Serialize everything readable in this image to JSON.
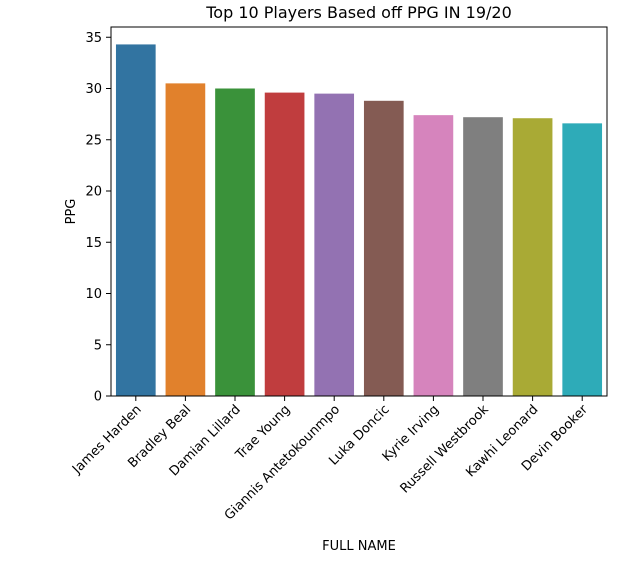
{
  "chart_data": {
    "type": "bar",
    "title": "Top 10 Players Based off PPG IN 19/20",
    "xlabel": "FULL NAME",
    "ylabel": "PPG",
    "categories": [
      "James Harden",
      "Bradley Beal",
      "Damian Lillard",
      "Trae Young",
      "Giannis Antetokounmpo",
      "Luka Doncic",
      "Kyrie Irving",
      "Russell Westbrook",
      "Kawhi Leonard",
      "Devin Booker"
    ],
    "values": [
      34.3,
      30.5,
      30.0,
      29.6,
      29.5,
      28.8,
      27.4,
      27.2,
      27.1,
      26.6
    ],
    "colors": [
      "#3274a1",
      "#e1812c",
      "#3a923a",
      "#c03d3e",
      "#9372b2",
      "#845b53",
      "#d684bd",
      "#7f7f7f",
      "#a9aa35",
      "#2eabb8"
    ],
    "ylim": [
      0,
      36
    ],
    "yticks": [
      0,
      5,
      10,
      15,
      20,
      25,
      30,
      35
    ],
    "grid": false,
    "legend": false
  }
}
